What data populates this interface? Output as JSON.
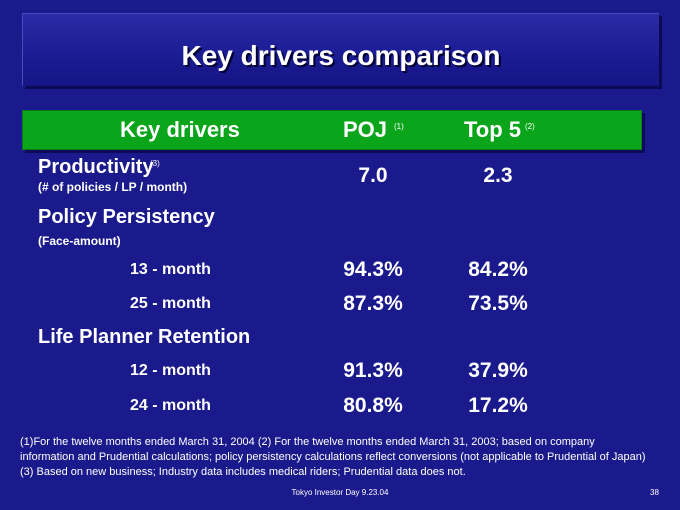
{
  "title": "Key drivers comparison",
  "header": {
    "col1": "Key drivers",
    "col2": "POJ",
    "col2_sup": "(1)",
    "col3": "Top 5",
    "col3_sup": "(2)"
  },
  "productivity": {
    "label": "Productivity",
    "sup": "(3)",
    "note": "(# of policies / LP / month)",
    "poj": "7.0",
    "top5": "2.3"
  },
  "persistency": {
    "label": "Policy Persistency",
    "note": "(Face-amount)",
    "rows": [
      {
        "label": "13 - month",
        "poj": "94.3%",
        "top5": "84.2%"
      },
      {
        "label": "25 - month",
        "poj": "87.3%",
        "top5": "73.5%"
      }
    ]
  },
  "retention": {
    "label": "Life Planner Retention",
    "rows": [
      {
        "label": "12 - month",
        "poj": "91.3%",
        "top5": "37.9%"
      },
      {
        "label": "24 - month",
        "poj": "80.8%",
        "top5": "17.2%"
      }
    ]
  },
  "footnote": "(1)For the twelve months ended  March 31, 2004 (2) For the twelve months ended  March 31, 2003; based on company information and Prudential calculations; policy persistency calculations reflect conversions (not applicable to Prudential of Japan) (3) Based on new business; Industry data includes medical riders; Prudential data does not.",
  "footer": "Tokyo Investor Day 9.23.04",
  "page_number": "38"
}
